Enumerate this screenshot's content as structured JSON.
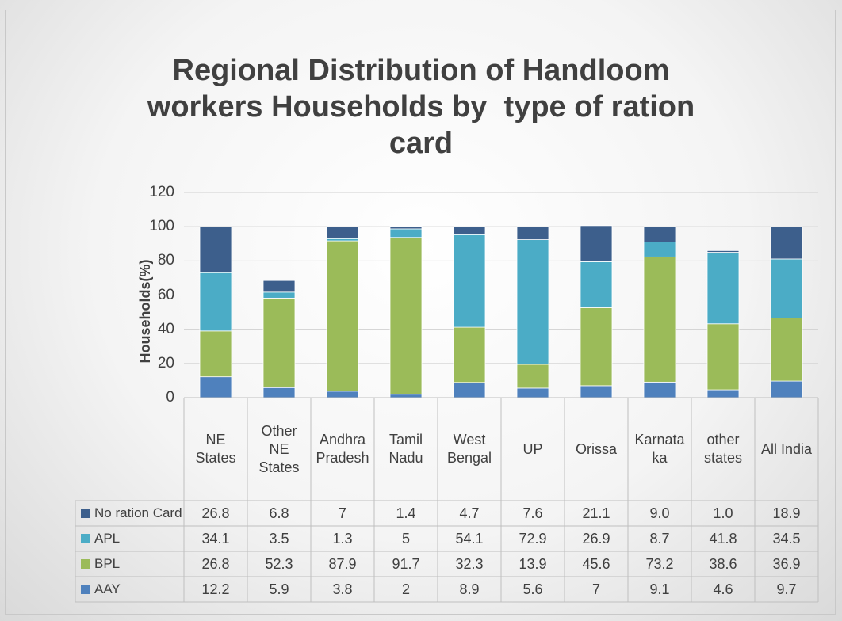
{
  "chart_data": {
    "type": "stacked_bar",
    "title": "Regional Distribution of Handloom workers Households by  type of ration card",
    "y_label": "Households(%)",
    "categories": [
      "NE States",
      "Other NE States",
      "Andhra Pradesh",
      "Tamil Nadu",
      "West Bengal",
      "UP",
      "Orissa",
      "Karnataka",
      "other states",
      "All India"
    ],
    "series": [
      {
        "name": "AAY",
        "color": "#4f81bd",
        "values": [
          12.2,
          5.9,
          3.8,
          2,
          8.9,
          5.6,
          7,
          9.1,
          4.6,
          9.7
        ],
        "value_labels": [
          "12.2",
          "5.9",
          "3.8",
          "2",
          "8.9",
          "5.6",
          "7",
          "9.1",
          "4.6",
          "9.7"
        ]
      },
      {
        "name": "BPL",
        "color": "#9bbb59",
        "values": [
          26.8,
          52.3,
          87.9,
          91.7,
          32.3,
          13.9,
          45.6,
          73.2,
          38.6,
          36.9
        ],
        "value_labels": [
          "26.8",
          "52.3",
          "87.9",
          "91.7",
          "32.3",
          "13.9",
          "45.6",
          "73.2",
          "38.6",
          "36.9"
        ]
      },
      {
        "name": "APL",
        "color": "#4bacc6",
        "values": [
          34.1,
          3.5,
          1.3,
          5,
          54.1,
          72.9,
          26.9,
          8.7,
          41.8,
          34.5
        ],
        "value_labels": [
          "34.1",
          "3.5",
          "1.3",
          "5",
          "54.1",
          "72.9",
          "26.9",
          "8.7",
          "41.8",
          "34.5"
        ]
      },
      {
        "name": "No ration Card",
        "color": "#3d5f8c",
        "values": [
          26.8,
          6.8,
          7,
          1.4,
          4.7,
          7.6,
          21.1,
          9.0,
          1.0,
          18.9
        ],
        "value_labels": [
          "26.8",
          "6.8",
          "7",
          "1.4",
          "4.7",
          "7.6",
          "21.1",
          "9.0",
          "1.0",
          "18.9"
        ]
      }
    ],
    "ylim": [
      0,
      120
    ],
    "yticks": [
      0,
      20,
      40,
      60,
      80,
      100,
      120
    ],
    "grid": true
  }
}
